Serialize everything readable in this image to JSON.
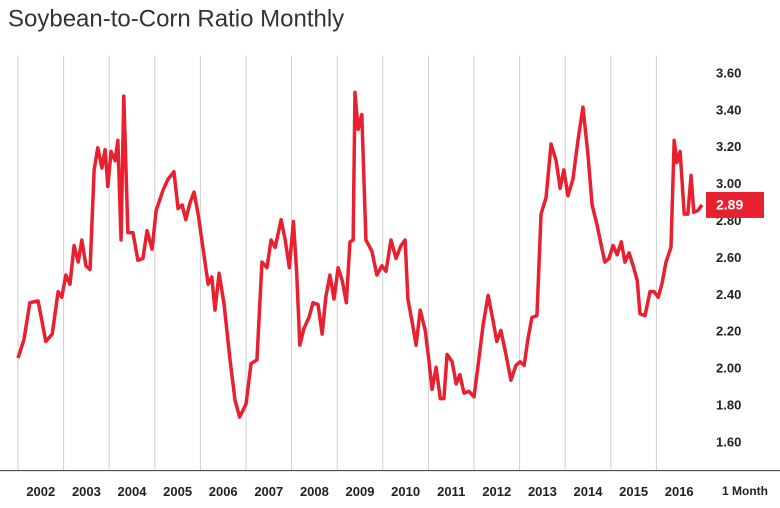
{
  "chart_data": {
    "type": "line",
    "title": "Soybean-to-Corn Ratio Monthly",
    "period_label": "1 Month",
    "color": "#e8202f",
    "grid": "x",
    "last_value_label": 2.89,
    "xlim": [
      2002,
      2017
    ],
    "xticks": [
      2002,
      2003,
      2004,
      2005,
      2006,
      2007,
      2008,
      2009,
      2010,
      2011,
      2012,
      2013,
      2014,
      2015,
      2016
    ],
    "ylim": [
      1.45,
      3.7
    ],
    "yticks": [
      {
        "value": 1.6,
        "label": "1.60"
      },
      {
        "value": 1.8,
        "label": "1.80"
      },
      {
        "value": 2.0,
        "label": "2.00"
      },
      {
        "value": 2.2,
        "label": "2.20"
      },
      {
        "value": 2.4,
        "label": "2.40"
      },
      {
        "value": 2.6,
        "label": "2.60"
      },
      {
        "value": 2.8,
        "label": "2.80"
      },
      {
        "value": 3.0,
        "label": "3.00"
      },
      {
        "value": 3.2,
        "label": "3.20"
      },
      {
        "value": 3.4,
        "label": "3.40"
      },
      {
        "value": 3.6,
        "label": "3.60"
      }
    ],
    "x": [
      2002.0,
      2002.13,
      2002.26,
      2002.44,
      2002.61,
      2002.75,
      2002.88,
      2002.96,
      2003.05,
      2003.14,
      2003.23,
      2003.32,
      2003.4,
      2003.49,
      2003.58,
      2003.67,
      2003.75,
      2003.84,
      2003.91,
      2003.97,
      2004.04,
      2004.13,
      2004.19,
      2004.26,
      2004.32,
      2004.41,
      2004.52,
      2004.63,
      2004.74,
      2004.83,
      2004.94,
      2005.03,
      2005.18,
      2005.29,
      2005.42,
      2005.51,
      2005.6,
      2005.68,
      2005.77,
      2005.86,
      2005.95,
      2006.06,
      2006.17,
      2006.25,
      2006.32,
      2006.41,
      2006.52,
      2006.65,
      2006.76,
      2006.86,
      2007.0,
      2007.11,
      2007.24,
      2007.35,
      2007.46,
      2007.55,
      2007.64,
      2007.77,
      2007.86,
      2007.95,
      2008.04,
      2008.11,
      2008.18,
      2008.27,
      2008.38,
      2008.47,
      2008.58,
      2008.67,
      2008.75,
      2008.84,
      2008.93,
      2009.02,
      2009.11,
      2009.2,
      2009.28,
      2009.35,
      2009.39,
      2009.46,
      2009.54,
      2009.63,
      2009.76,
      2009.87,
      2009.98,
      2010.07,
      2010.18,
      2010.29,
      2010.4,
      2010.49,
      2010.55,
      2010.64,
      2010.73,
      2010.82,
      2010.93,
      2011.01,
      2011.08,
      2011.17,
      2011.26,
      2011.34,
      2011.41,
      2011.52,
      2011.61,
      2011.69,
      2011.78,
      2011.89,
      2012.0,
      2012.09,
      2012.2,
      2012.31,
      2012.42,
      2012.5,
      2012.59,
      2012.7,
      2012.81,
      2012.92,
      2013.01,
      2013.1,
      2013.18,
      2013.27,
      2013.38,
      2013.47,
      2013.58,
      2013.69,
      2013.8,
      2013.89,
      2013.97,
      2014.06,
      2014.17,
      2014.28,
      2014.39,
      2014.5,
      2014.59,
      2014.7,
      2014.8,
      2014.87,
      2014.96,
      2015.05,
      2015.14,
      2015.23,
      2015.31,
      2015.4,
      2015.49,
      2015.58,
      2015.64,
      2015.75,
      2015.86,
      2015.95,
      2016.04,
      2016.12,
      2016.21,
      2016.32,
      2016.39,
      2016.45,
      2016.52,
      2016.61,
      2016.69,
      2016.76,
      2016.82,
      2016.91,
      2017.0
    ],
    "values": [
      2.06,
      2.16,
      2.36,
      2.37,
      2.15,
      2.19,
      2.42,
      2.39,
      2.51,
      2.46,
      2.67,
      2.58,
      2.7,
      2.56,
      2.54,
      3.08,
      3.2,
      3.09,
      3.19,
      2.99,
      3.18,
      3.13,
      3.24,
      2.7,
      3.48,
      2.74,
      2.74,
      2.59,
      2.6,
      2.75,
      2.65,
      2.86,
      2.97,
      3.03,
      3.07,
      2.87,
      2.89,
      2.81,
      2.9,
      2.96,
      2.84,
      2.65,
      2.46,
      2.5,
      2.32,
      2.52,
      2.35,
      2.05,
      1.83,
      1.74,
      1.81,
      2.03,
      2.05,
      2.58,
      2.55,
      2.7,
      2.66,
      2.81,
      2.7,
      2.55,
      2.8,
      2.53,
      2.13,
      2.22,
      2.28,
      2.36,
      2.35,
      2.19,
      2.39,
      2.51,
      2.38,
      2.55,
      2.48,
      2.36,
      2.69,
      2.7,
      3.5,
      3.3,
      3.38,
      2.7,
      2.64,
      2.51,
      2.56,
      2.53,
      2.7,
      2.6,
      2.67,
      2.7,
      2.38,
      2.26,
      2.13,
      2.32,
      2.21,
      2.05,
      1.89,
      2.01,
      1.84,
      1.84,
      2.08,
      2.04,
      1.92,
      1.97,
      1.87,
      1.88,
      1.85,
      2.02,
      2.24,
      2.4,
      2.26,
      2.15,
      2.21,
      2.08,
      1.94,
      2.02,
      2.04,
      2.02,
      2.16,
      2.28,
      2.29,
      2.84,
      2.93,
      3.22,
      3.13,
      2.98,
      3.08,
      2.94,
      3.03,
      3.24,
      3.42,
      3.16,
      2.89,
      2.78,
      2.66,
      2.58,
      2.6,
      2.67,
      2.62,
      2.69,
      2.58,
      2.63,
      2.56,
      2.48,
      2.3,
      2.29,
      2.42,
      2.42,
      2.39,
      2.46,
      2.58,
      2.66,
      3.24,
      3.12,
      3.18,
      2.84,
      2.84,
      3.05,
      2.85,
      2.86,
      2.89
    ]
  }
}
